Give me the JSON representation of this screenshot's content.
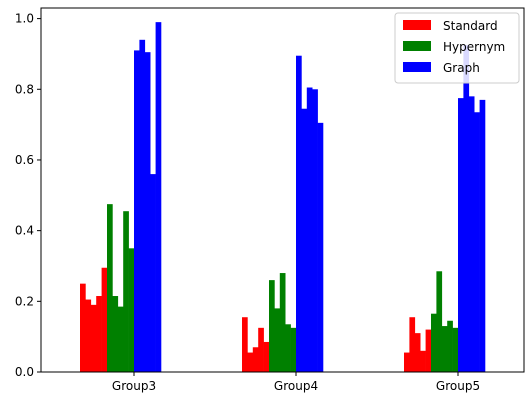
{
  "chart_data": {
    "type": "bar",
    "title": "",
    "xlabel": "",
    "ylabel": "",
    "ylim": [
      0,
      1.03
    ],
    "yticks": [
      "0.0",
      "0.2",
      "0.4",
      "0.6",
      "0.8",
      "1.0"
    ],
    "categories": [
      "Group3",
      "Group4",
      "Group5"
    ],
    "legend": {
      "location": "upper right"
    },
    "series": [
      {
        "name": "Standard",
        "color": "#ff0000",
        "values": [
          [
            0.25,
            0.205,
            0.19,
            0.215,
            0.295
          ],
          [
            0.155,
            0.055,
            0.07,
            0.125,
            0.085
          ],
          [
            0.055,
            0.155,
            0.11,
            0.06,
            0.12
          ]
        ]
      },
      {
        "name": "Hypernym",
        "color": "#008000",
        "values": [
          [
            0.475,
            0.215,
            0.185,
            0.455,
            0.35
          ],
          [
            0.26,
            0.18,
            0.28,
            0.135,
            0.125
          ],
          [
            0.165,
            0.285,
            0.13,
            0.145,
            0.125
          ]
        ]
      },
      {
        "name": "Graph",
        "color": "#0000ff",
        "values": [
          [
            0.91,
            0.94,
            0.905,
            0.56,
            0.99
          ],
          [
            0.895,
            0.745,
            0.805,
            0.8,
            0.705
          ],
          [
            0.775,
            0.925,
            0.78,
            0.735,
            0.77
          ]
        ]
      }
    ]
  }
}
